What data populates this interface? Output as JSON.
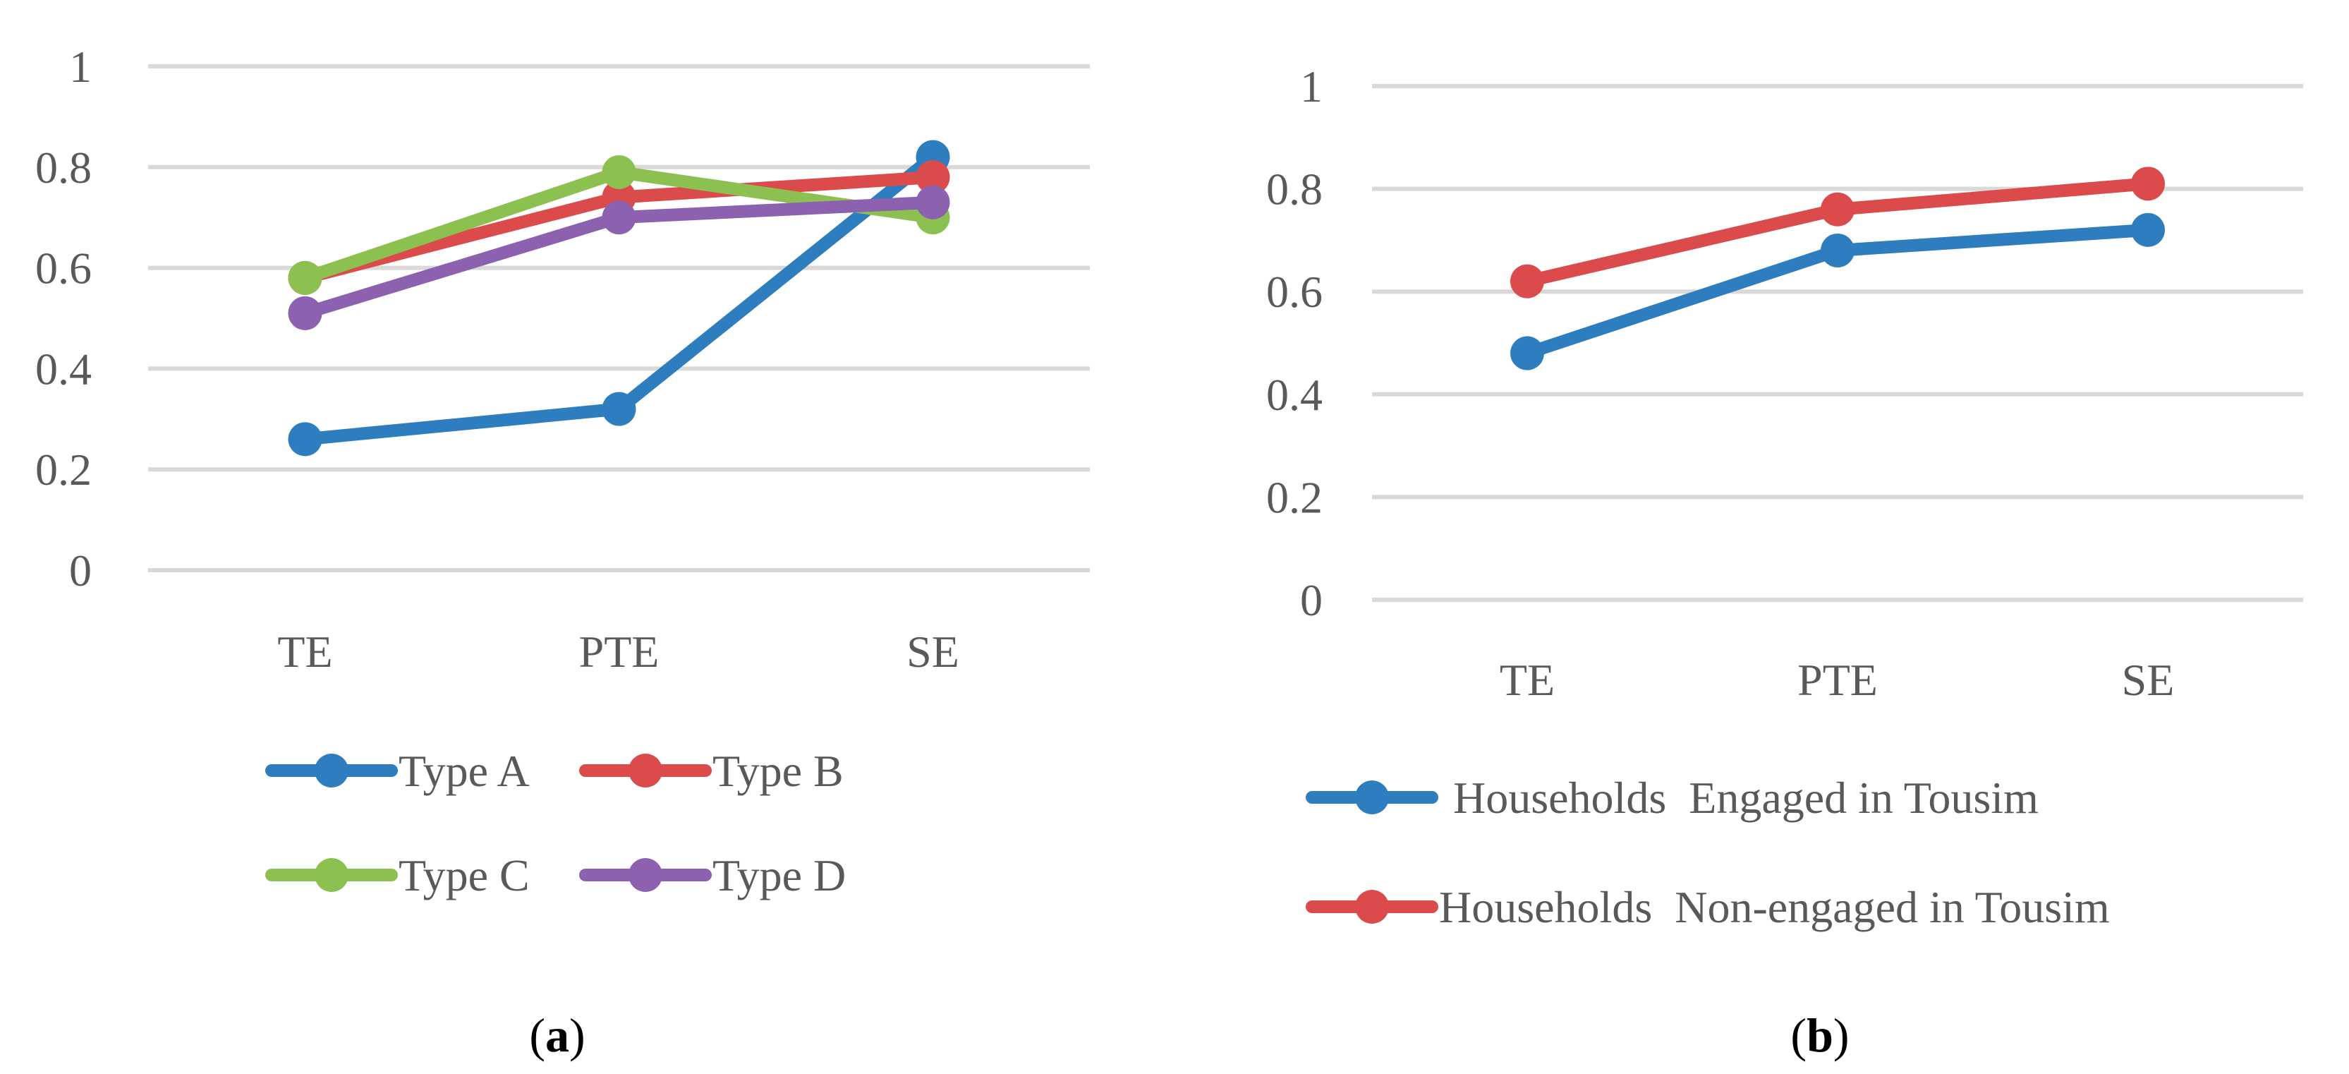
{
  "chart_data": [
    {
      "type": "line",
      "categories": [
        "TE",
        "PTE",
        "SE"
      ],
      "yticks": [
        "0",
        "0.2",
        "0.4",
        "0.6",
        "0.8",
        "1"
      ],
      "ylim": [
        0,
        1
      ],
      "grid": true,
      "legend": "bottom",
      "caption": {
        "open": "(",
        "letter": "a",
        "close": ")"
      },
      "series": [
        {
          "name": "Type A",
          "color": "#2e7ebf",
          "values": [
            0.26,
            0.32,
            0.82
          ]
        },
        {
          "name": "Type B",
          "color": "#dc4b4b",
          "values": [
            0.58,
            0.74,
            0.78
          ]
        },
        {
          "name": "Type C",
          "color": "#8cc152",
          "values": [
            0.58,
            0.79,
            0.7
          ]
        },
        {
          "name": "Type D",
          "color": "#8c62b0",
          "values": [
            0.51,
            0.7,
            0.73
          ]
        }
      ]
    },
    {
      "type": "line",
      "categories": [
        "TE",
        "PTE",
        "SE"
      ],
      "yticks": [
        "0",
        "0.2",
        "0.4",
        "0.6",
        "0.8",
        "1"
      ],
      "ylim": [
        0,
        1
      ],
      "grid": true,
      "legend": "bottom",
      "caption": {
        "open": "(",
        "letter": "b",
        "close": ")"
      },
      "series": [
        {
          "name": "Households  Engaged in Tousim",
          "color": "#2e7ebf",
          "values": [
            0.48,
            0.68,
            0.72
          ]
        },
        {
          "name": "Households  Non-engaged in Tousim",
          "color": "#dc4b4b",
          "values": [
            0.62,
            0.76,
            0.81
          ]
        }
      ]
    }
  ]
}
